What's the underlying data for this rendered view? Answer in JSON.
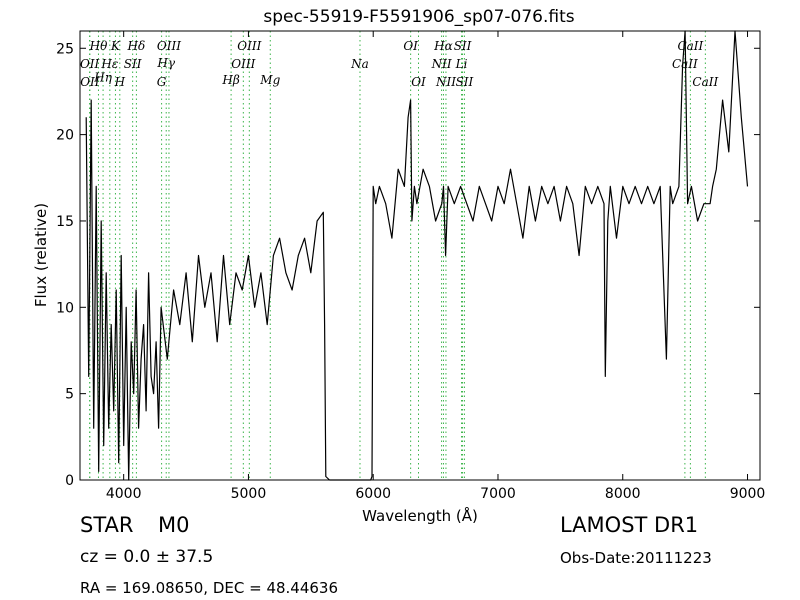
{
  "chart_data": {
    "type": "line",
    "title": "spec-55919-F5591906_sp07-076.fits",
    "xlabel": "Wavelength (Å)",
    "ylabel": "Flux (relative)",
    "xlim": [
      3650,
      9100
    ],
    "ylim": [
      0,
      26
    ],
    "x_ticks": [
      4000,
      5000,
      6000,
      7000,
      8000,
      9000
    ],
    "y_ticks": [
      0,
      5,
      10,
      15,
      20,
      25
    ],
    "grid": false,
    "line_color": "#000000",
    "marker_color": "#3cb44b",
    "series": [
      {
        "x": [
          3700,
          3720,
          3740,
          3760,
          3780,
          3800,
          3820,
          3840,
          3860,
          3880,
          3900,
          3920,
          3940,
          3960,
          3980,
          4000,
          4020,
          4040,
          4060,
          4080,
          4100,
          4120,
          4140,
          4160,
          4180,
          4200,
          4220,
          4240,
          4260,
          4280,
          4300,
          4350,
          4400,
          4450,
          4500,
          4550,
          4600,
          4650,
          4700,
          4750,
          4800,
          4850,
          4900,
          4950,
          5000,
          5050,
          5100,
          5150,
          5200,
          5250,
          5300,
          5350,
          5400,
          5450,
          5500,
          5550,
          5600,
          5610,
          5620,
          5650,
          5700,
          5800,
          5900,
          5980,
          5990,
          6000,
          6020,
          6050,
          6100,
          6150,
          6200,
          6250,
          6280,
          6300,
          6310,
          6330,
          6350,
          6400,
          6450,
          6500,
          6550,
          6563,
          6580,
          6600,
          6650,
          6700,
          6750,
          6800,
          6850,
          6900,
          6950,
          7000,
          7050,
          7100,
          7150,
          7200,
          7250,
          7300,
          7350,
          7400,
          7450,
          7500,
          7550,
          7600,
          7650,
          7700,
          7750,
          7800,
          7850,
          7860,
          7880,
          7900,
          7950,
          8000,
          8050,
          8100,
          8150,
          8200,
          8250,
          8300,
          8350,
          8380,
          8400,
          8450,
          8480,
          8500,
          8520,
          8550,
          8600,
          8650,
          8700,
          8720,
          8750,
          8800,
          8850,
          8900,
          8950,
          9000
        ],
        "y": [
          21,
          6,
          22,
          3,
          17,
          0.5,
          15,
          2,
          12,
          3,
          9,
          4,
          11,
          1,
          13,
          2,
          10,
          0,
          8,
          5,
          11,
          3,
          7,
          9,
          4,
          12,
          6,
          5,
          8,
          3,
          10,
          7,
          11,
          9,
          12,
          8,
          13,
          10,
          12,
          8,
          13,
          9,
          12,
          11,
          13,
          10,
          12,
          9,
          13,
          14,
          12,
          11,
          13,
          14,
          12,
          15,
          15.5,
          9,
          0.2,
          0,
          0,
          0,
          0,
          0,
          0.2,
          17,
          16,
          17,
          16,
          14,
          18,
          17,
          21,
          22,
          15,
          17,
          16,
          18,
          17,
          15,
          16,
          17,
          13,
          17,
          16,
          17,
          16,
          15,
          17,
          16,
          15,
          17,
          16,
          18,
          16,
          14,
          17,
          15,
          17,
          16,
          17,
          15,
          17,
          16,
          13,
          17,
          16,
          17,
          16,
          6,
          15,
          17,
          14,
          17,
          16,
          17,
          16,
          17,
          16,
          17,
          7,
          17,
          16,
          17,
          24,
          26,
          16,
          17,
          15,
          16,
          16,
          17,
          18,
          22,
          19,
          26,
          21,
          17
        ]
      }
    ],
    "line_labels": [
      {
        "label": "OII",
        "x": 3727,
        "row": 1
      },
      {
        "label": "OII",
        "x": 3729,
        "row": 2
      },
      {
        "label": "Hθ",
        "x": 3798,
        "row": 0
      },
      {
        "label": "Hη",
        "x": 3835,
        "row": 1.75
      },
      {
        "label": "Hε",
        "x": 3889,
        "row": 1
      },
      {
        "label": "K",
        "x": 3934,
        "row": 0
      },
      {
        "label": "H",
        "x": 3969,
        "row": 2
      },
      {
        "label": "SII",
        "x": 4072,
        "row": 1
      },
      {
        "label": "Hδ",
        "x": 4102,
        "row": 0
      },
      {
        "label": "G",
        "x": 4304,
        "row": 2
      },
      {
        "label": "Hγ",
        "x": 4341,
        "row": 0.95
      },
      {
        "label": "OIII",
        "x": 4363,
        "row": 0
      },
      {
        "label": "Hβ",
        "x": 4861,
        "row": 1.9
      },
      {
        "label": "OIII",
        "x": 4959,
        "row": 1
      },
      {
        "label": "OIII",
        "x": 5007,
        "row": 0
      },
      {
        "label": "Mg",
        "x": 5175,
        "row": 1.9
      },
      {
        "label": "Na",
        "x": 5894,
        "row": 1
      },
      {
        "label": "OI",
        "x": 6300,
        "row": 0
      },
      {
        "label": "OI",
        "x": 6363,
        "row": 2
      },
      {
        "label": "NII",
        "x": 6548,
        "row": 1
      },
      {
        "label": "Hα",
        "x": 6563,
        "row": 0
      },
      {
        "label": "NII",
        "x": 6583,
        "row": 2
      },
      {
        "label": "Li",
        "x": 6708,
        "row": 1
      },
      {
        "label": "SII",
        "x": 6716,
        "row": 0
      },
      {
        "label": "SII",
        "x": 6731,
        "row": 2
      },
      {
        "label": "CaII",
        "x": 8498,
        "row": 1
      },
      {
        "label": "CaII",
        "x": 8542,
        "row": 0
      },
      {
        "label": "CaII",
        "x": 8662,
        "row": 2
      }
    ]
  },
  "info": {
    "object_type": "STAR",
    "subclass": "M0",
    "survey": "LAMOST DR1",
    "redshift": "cz = 0.0 ± 37.5",
    "obs_date": "Obs-Date:20111223",
    "radec": "RA = 169.08650, DEC = 48.44636"
  }
}
